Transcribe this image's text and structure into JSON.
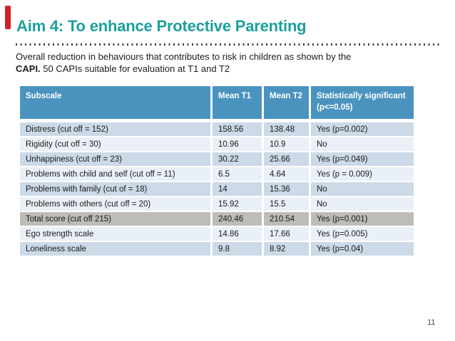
{
  "slide": {
    "title": "Aim 4: To enhance Protective Parenting",
    "page_number": "11"
  },
  "intro": {
    "line1": "Overall reduction in behaviours that contributes to risk in children as shown by the",
    "bold": "CAPI.",
    "line2": "50 CAPIs suitable for evaluation at T1 and T2"
  },
  "table": {
    "headers": [
      "Subscale",
      "Mean T1",
      "Mean T2",
      "Statistically significant (p<=0.05)"
    ],
    "rows": [
      {
        "subscale": "Distress (cut off = 152)",
        "mean_t1": "158.56",
        "mean_t2": "138.48",
        "significant": "Yes (p=0.002)"
      },
      {
        "subscale": "Rigidity (cut off = 30)",
        "mean_t1": "10.96",
        "mean_t2": "10.9",
        "significant": "No"
      },
      {
        "subscale": "Unhappiness (cut off = 23)",
        "mean_t1": "30.22",
        "mean_t2": "25.66",
        "significant": "Yes (p=0.049)"
      },
      {
        "subscale": "Problems with child and self (cut off = 11)",
        "mean_t1": "6.5",
        "mean_t2": "4.64",
        "significant": "Yes (p = 0.009)"
      },
      {
        "subscale": "Problems with family (cut of = 18)",
        "mean_t1": "14",
        "mean_t2": "15.36",
        "significant": "No"
      },
      {
        "subscale": "Problems with others (cut off = 20)",
        "mean_t1": "15.92",
        "mean_t2": "15.5",
        "significant": "No"
      },
      {
        "subscale": "Total score (cut off 215)",
        "mean_t1": "240.46",
        "mean_t2": "210.54",
        "significant": "Yes (p=0.001)"
      },
      {
        "subscale": "Ego strength scale",
        "mean_t1": "14.86",
        "mean_t2": "17.66",
        "significant": "Yes (p=0.005)"
      },
      {
        "subscale": "Loneliness scale",
        "mean_t1": "9.8",
        "mean_t2": "8.92",
        "significant": "Yes (p=0.04)"
      }
    ]
  },
  "colors": {
    "title_teal": "#1CA09E",
    "accent_red": "#D0202A",
    "table_header_blue": "#4B93BF",
    "row_band_blue": "#CCD9E7",
    "row_band_light": "#EAF0F7",
    "total_row_gray": "#BDBCB8"
  }
}
